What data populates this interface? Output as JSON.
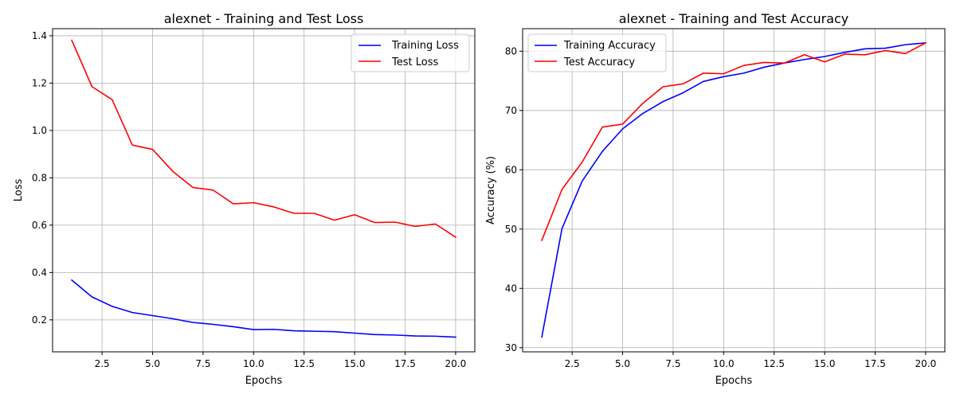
{
  "chart_data": [
    {
      "type": "line",
      "title": "alexnet - Training and Test Loss",
      "xlabel": "Epochs",
      "ylabel": "Loss",
      "xlim": [
        0.05,
        20.95
      ],
      "ylim": [
        0.065,
        1.43
      ],
      "xticks": [
        2.5,
        5.0,
        7.5,
        10.0,
        12.5,
        15.0,
        17.5,
        20.0
      ],
      "xtick_labels": [
        "2.5",
        "5.0",
        "7.5",
        "10.0",
        "12.5",
        "15.0",
        "17.5",
        "20.0"
      ],
      "yticks": [
        0.2,
        0.4,
        0.6,
        0.8,
        1.0,
        1.2,
        1.4
      ],
      "ytick_labels": [
        "0.2",
        "0.4",
        "0.6",
        "0.8",
        "1.0",
        "1.2",
        "1.4"
      ],
      "grid": true,
      "legend_loc": "upper right",
      "x": [
        1,
        2,
        3,
        4,
        5,
        6,
        7,
        8,
        9,
        10,
        11,
        12,
        13,
        14,
        15,
        16,
        17,
        18,
        19,
        20
      ],
      "series": [
        {
          "name": "Training Loss",
          "color": "#0000ff",
          "values": [
            0.368,
            0.297,
            0.257,
            0.231,
            0.218,
            0.205,
            0.189,
            0.181,
            0.171,
            0.159,
            0.16,
            0.154,
            0.152,
            0.15,
            0.144,
            0.138,
            0.136,
            0.132,
            0.131,
            0.127
          ]
        },
        {
          "name": "Test Loss",
          "color": "#ff0000",
          "values": [
            1.381,
            1.185,
            1.13,
            0.938,
            0.92,
            0.827,
            0.759,
            0.748,
            0.69,
            0.695,
            0.677,
            0.65,
            0.65,
            0.621,
            0.644,
            0.611,
            0.613,
            0.595,
            0.605,
            0.549
          ]
        }
      ]
    },
    {
      "type": "line",
      "title": "alexnet - Training and Test Accuracy",
      "xlabel": "Epochs",
      "ylabel": "Accuracy (%)",
      "xlim": [
        0.05,
        20.95
      ],
      "ylim": [
        29.3,
        83.8
      ],
      "xticks": [
        2.5,
        5.0,
        7.5,
        10.0,
        12.5,
        15.0,
        17.5,
        20.0
      ],
      "xtick_labels": [
        "2.5",
        "5.0",
        "7.5",
        "10.0",
        "12.5",
        "15.0",
        "17.5",
        "20.0"
      ],
      "yticks": [
        30,
        40,
        50,
        60,
        70,
        80
      ],
      "ytick_labels": [
        "30",
        "40",
        "50",
        "60",
        "70",
        "80"
      ],
      "grid": true,
      "legend_loc": "upper left",
      "x": [
        1,
        2,
        3,
        4,
        5,
        6,
        7,
        8,
        9,
        10,
        11,
        12,
        13,
        14,
        15,
        16,
        17,
        18,
        19,
        20
      ],
      "series": [
        {
          "name": "Training Accuracy",
          "color": "#0000ff",
          "values": [
            31.8,
            50.1,
            58.1,
            63.1,
            66.9,
            69.5,
            71.5,
            73.0,
            74.9,
            75.7,
            76.3,
            77.3,
            78.0,
            78.6,
            79.1,
            79.8,
            80.4,
            80.5,
            81.1,
            81.4
          ]
        },
        {
          "name": "Test Accuracy",
          "color": "#ff0000",
          "values": [
            48.1,
            56.7,
            61.3,
            67.2,
            67.7,
            71.2,
            74.0,
            74.5,
            76.3,
            76.2,
            77.6,
            78.1,
            78.0,
            79.4,
            78.2,
            79.5,
            79.4,
            80.1,
            79.6,
            81.4
          ]
        }
      ]
    }
  ]
}
